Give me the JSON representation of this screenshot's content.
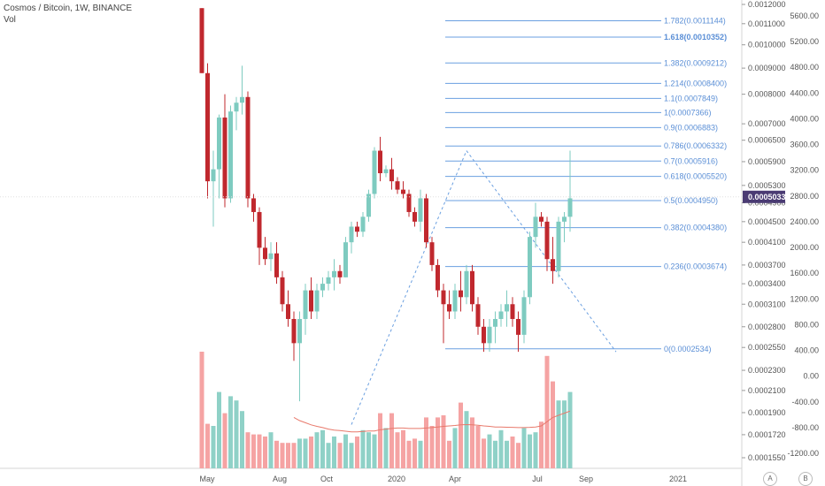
{
  "header": {
    "title": "Cosmos / Bitcoin, 1W, BINANCE",
    "volume_label": "Vol"
  },
  "colors": {
    "up": "#7ecbc0",
    "down": "#c0282e",
    "vol_up": "#8fd1c7",
    "vol_down": "#f5a3a3",
    "fib": "#6a9fe0",
    "ma": "#e8796b",
    "price_tag_bg": "#4a3b73"
  },
  "controls": {
    "auto_label": "A",
    "log_label": "B"
  },
  "chart_data": {
    "type": "candlestick",
    "title": "Cosmos / Bitcoin, 1W, BINANCE",
    "x_ticks": [
      "May",
      "Aug",
      "Oct",
      "2020",
      "Apr",
      "Jul",
      "Sep",
      "2021"
    ],
    "price_ticks": [
      "0.0012000",
      "0.0011000",
      "0.0010000",
      "0.0009000",
      "0.0008000",
      "0.0007000",
      "0.0006500",
      "0.0005900",
      "0.0005300",
      "0.0004900",
      "0.0004500",
      "0.0004100",
      "0.0003700",
      "0.0003400",
      "0.0003100",
      "0.0002800",
      "0.0002550",
      "0.0002300",
      "0.0002100",
      "0.0001900",
      "0.0001720",
      "0.0001550"
    ],
    "volume_ticks": [
      "5600.00",
      "5200.00",
      "4800.00",
      "4400.00",
      "4000.00",
      "3600.00",
      "3200.00",
      "2800.00",
      "2400.00",
      "2000.00",
      "1600.00",
      "1200.00",
      "800.00",
      "400.00",
      "0.00",
      "-400.00",
      "-800.00",
      "-1200.00"
    ],
    "last_price": "0.0005033",
    "fib_levels": [
      {
        "label": "1.782(0.0011144)"
      },
      {
        "label": "1.618(0.0010352)"
      },
      {
        "label": "1.382(0.0009212)"
      },
      {
        "label": "1.214(0.0008400)"
      },
      {
        "label": "1.1(0.0007849)"
      },
      {
        "label": "1(0.0007366)"
      },
      {
        "label": "0.9(0.0006883)"
      },
      {
        "label": "0.786(0.0006332)"
      },
      {
        "label": "0.7(0.0005916)"
      },
      {
        "label": "0.618(0.0005520)"
      },
      {
        "label": "0.5(0.0004950)"
      },
      {
        "label": "0.382(0.0004380)"
      },
      {
        "label": "0.236(0.0003674)"
      },
      {
        "label": "0(0.0002534)"
      }
    ],
    "candles": [
      {
        "o": 0.00118,
        "h": 0.00118,
        "l": 0.00088,
        "c": 0.00088
      },
      {
        "o": 0.00088,
        "h": 0.00092,
        "l": 0.0005,
        "c": 0.00054
      },
      {
        "o": 0.00054,
        "h": 0.00062,
        "l": 0.00044,
        "c": 0.00057
      },
      {
        "o": 0.00057,
        "h": 0.00073,
        "l": 0.0005,
        "c": 0.00072
      },
      {
        "o": 0.00072,
        "h": 0.0008,
        "l": 0.00048,
        "c": 0.0005
      },
      {
        "o": 0.0005,
        "h": 0.00076,
        "l": 0.00049,
        "c": 0.00074
      },
      {
        "o": 0.00074,
        "h": 0.00079,
        "l": 0.00068,
        "c": 0.00077
      },
      {
        "o": 0.00077,
        "h": 0.00091,
        "l": 0.00073,
        "c": 0.00079
      },
      {
        "o": 0.00079,
        "h": 0.00081,
        "l": 0.00048,
        "c": 0.0005
      },
      {
        "o": 0.0005,
        "h": 0.00051,
        "l": 0.00045,
        "c": 0.00047
      },
      {
        "o": 0.00047,
        "h": 0.00048,
        "l": 0.00037,
        "c": 0.0004
      },
      {
        "o": 0.0004,
        "h": 0.00042,
        "l": 0.00037,
        "c": 0.00038
      },
      {
        "o": 0.00038,
        "h": 0.00041,
        "l": 0.00036,
        "c": 0.00039
      },
      {
        "o": 0.00039,
        "h": 0.00041,
        "l": 0.00034,
        "c": 0.00035
      },
      {
        "o": 0.00035,
        "h": 0.00036,
        "l": 0.0003,
        "c": 0.00031
      },
      {
        "o": 0.00031,
        "h": 0.00033,
        "l": 0.00028,
        "c": 0.00029
      },
      {
        "o": 0.00029,
        "h": 0.0003,
        "l": 0.00024,
        "c": 0.00026
      },
      {
        "o": 0.00026,
        "h": 0.0003,
        "l": 0.0002,
        "c": 0.00029
      },
      {
        "o": 0.00029,
        "h": 0.00034,
        "l": 0.00027,
        "c": 0.00033
      },
      {
        "o": 0.00033,
        "h": 0.00035,
        "l": 0.00029,
        "c": 0.0003
      },
      {
        "o": 0.0003,
        "h": 0.00034,
        "l": 0.00029,
        "c": 0.00033
      },
      {
        "o": 0.00033,
        "h": 0.00035,
        "l": 0.00032,
        "c": 0.00034
      },
      {
        "o": 0.00034,
        "h": 0.00036,
        "l": 0.00033,
        "c": 0.00035
      },
      {
        "o": 0.00035,
        "h": 0.00038,
        "l": 0.00033,
        "c": 0.00036
      },
      {
        "o": 0.00036,
        "h": 0.00037,
        "l": 0.00034,
        "c": 0.00035
      },
      {
        "o": 0.00035,
        "h": 0.00042,
        "l": 0.00035,
        "c": 0.00041
      },
      {
        "o": 0.00041,
        "h": 0.00045,
        "l": 0.00039,
        "c": 0.00044
      },
      {
        "o": 0.00044,
        "h": 0.00045,
        "l": 0.00042,
        "c": 0.00043
      },
      {
        "o": 0.00043,
        "h": 0.00047,
        "l": 0.00042,
        "c": 0.00046
      },
      {
        "o": 0.00046,
        "h": 0.00052,
        "l": 0.00045,
        "c": 0.00051
      },
      {
        "o": 0.00051,
        "h": 0.00063,
        "l": 0.0005,
        "c": 0.00062
      },
      {
        "o": 0.00062,
        "h": 0.00066,
        "l": 0.00054,
        "c": 0.00056
      },
      {
        "o": 0.00056,
        "h": 0.00058,
        "l": 0.00055,
        "c": 0.00057
      },
      {
        "o": 0.00057,
        "h": 0.0006,
        "l": 0.00052,
        "c": 0.00054
      },
      {
        "o": 0.00054,
        "h": 0.00055,
        "l": 0.00051,
        "c": 0.00052
      },
      {
        "o": 0.00052,
        "h": 0.00054,
        "l": 0.0005,
        "c": 0.00051
      },
      {
        "o": 0.00051,
        "h": 0.00052,
        "l": 0.00046,
        "c": 0.00047
      },
      {
        "o": 0.00047,
        "h": 0.00048,
        "l": 0.00044,
        "c": 0.00045
      },
      {
        "o": 0.00045,
        "h": 0.00052,
        "l": 0.00043,
        "c": 0.0005
      },
      {
        "o": 0.0005,
        "h": 0.00051,
        "l": 0.0004,
        "c": 0.00041
      },
      {
        "o": 0.00041,
        "h": 0.00042,
        "l": 0.00036,
        "c": 0.00037
      },
      {
        "o": 0.00037,
        "h": 0.00038,
        "l": 0.00032,
        "c": 0.00033
      },
      {
        "o": 0.00033,
        "h": 0.00034,
        "l": 0.00026,
        "c": 0.00031
      },
      {
        "o": 0.00031,
        "h": 0.00033,
        "l": 0.00029,
        "c": 0.0003
      },
      {
        "o": 0.0003,
        "h": 0.00034,
        "l": 0.00029,
        "c": 0.00033
      },
      {
        "o": 0.00033,
        "h": 0.00036,
        "l": 0.0003,
        "c": 0.00032
      },
      {
        "o": 0.00032,
        "h": 0.00037,
        "l": 0.00031,
        "c": 0.00036
      },
      {
        "o": 0.00036,
        "h": 0.00037,
        "l": 0.0003,
        "c": 0.00031
      },
      {
        "o": 0.00031,
        "h": 0.00032,
        "l": 0.00027,
        "c": 0.00028
      },
      {
        "o": 0.00028,
        "h": 0.00029,
        "l": 0.00025,
        "c": 0.00026
      },
      {
        "o": 0.00026,
        "h": 0.00029,
        "l": 0.00025,
        "c": 0.00028
      },
      {
        "o": 0.00028,
        "h": 0.0003,
        "l": 0.00026,
        "c": 0.00029
      },
      {
        "o": 0.00029,
        "h": 0.00031,
        "l": 0.00028,
        "c": 0.0003
      },
      {
        "o": 0.0003,
        "h": 0.00033,
        "l": 0.00028,
        "c": 0.00031
      },
      {
        "o": 0.00031,
        "h": 0.00032,
        "l": 0.00028,
        "c": 0.00029
      },
      {
        "o": 0.00029,
        "h": 0.0003,
        "l": 0.00025,
        "c": 0.00027
      },
      {
        "o": 0.00027,
        "h": 0.00033,
        "l": 0.00026,
        "c": 0.00032
      },
      {
        "o": 0.00032,
        "h": 0.00043,
        "l": 0.00031,
        "c": 0.00042
      },
      {
        "o": 0.00042,
        "h": 0.00049,
        "l": 0.0004,
        "c": 0.00046
      },
      {
        "o": 0.00046,
        "h": 0.00047,
        "l": 0.00044,
        "c": 0.00045
      },
      {
        "o": 0.00045,
        "h": 0.00046,
        "l": 0.00036,
        "c": 0.00038
      },
      {
        "o": 0.00038,
        "h": 0.00042,
        "l": 0.00034,
        "c": 0.00036
      },
      {
        "o": 0.00036,
        "h": 0.00046,
        "l": 0.00035,
        "c": 0.00045
      },
      {
        "o": 0.00045,
        "h": 0.00047,
        "l": 0.00041,
        "c": 0.00046
      },
      {
        "o": 0.00046,
        "h": 0.00062,
        "l": 0.00043,
        "c": 0.0005
      }
    ],
    "volumes": [
      5500,
      2100,
      2000,
      3600,
      2600,
      3400,
      3200,
      2700,
      1700,
      1600,
      1600,
      1500,
      1700,
      1300,
      1200,
      1200,
      1200,
      1400,
      1400,
      1500,
      1700,
      1800,
      1200,
      1500,
      1200,
      1600,
      1200,
      1500,
      1800,
      1700,
      1600,
      2600,
      1900,
      2600,
      1700,
      1800,
      1300,
      1400,
      1300,
      2400,
      2000,
      2400,
      2500,
      1300,
      1900,
      3100,
      2700,
      2400,
      2000,
      1400,
      1600,
      1300,
      1800,
      1300,
      1500,
      1200,
      1900,
      1600,
      1700,
      2200,
      5300,
      4100,
      3200,
      3200,
      3600
    ],
    "volume_ma": [
      null,
      null,
      null,
      null,
      null,
      null,
      null,
      null,
      null,
      null,
      null,
      null,
      null,
      null,
      null,
      null,
      2400,
      2250,
      2150,
      2050,
      1980,
      1920,
      1850,
      1800,
      1780,
      1750,
      1720,
      1720,
      1740,
      1760,
      1760,
      1820,
      1850,
      1880,
      1900,
      1900,
      1880,
      1880,
      1880,
      1900,
      1920,
      1950,
      1980,
      2000,
      2020,
      2050,
      2060,
      2050,
      2030,
      2000,
      1980,
      1950,
      1950,
      1940,
      1930,
      1920,
      1920,
      1930,
      1950,
      2000,
      2200,
      2400,
      2500,
      2600,
      2700
    ],
    "trendlines": [
      {
        "from_index": 46,
        "from_price": 0.00062,
        "to_index": 72,
        "to_price": 0.00025
      },
      {
        "from_index": 26,
        "from_price": 0.00018,
        "to_index": 46,
        "to_price": 0.00062
      }
    ]
  }
}
